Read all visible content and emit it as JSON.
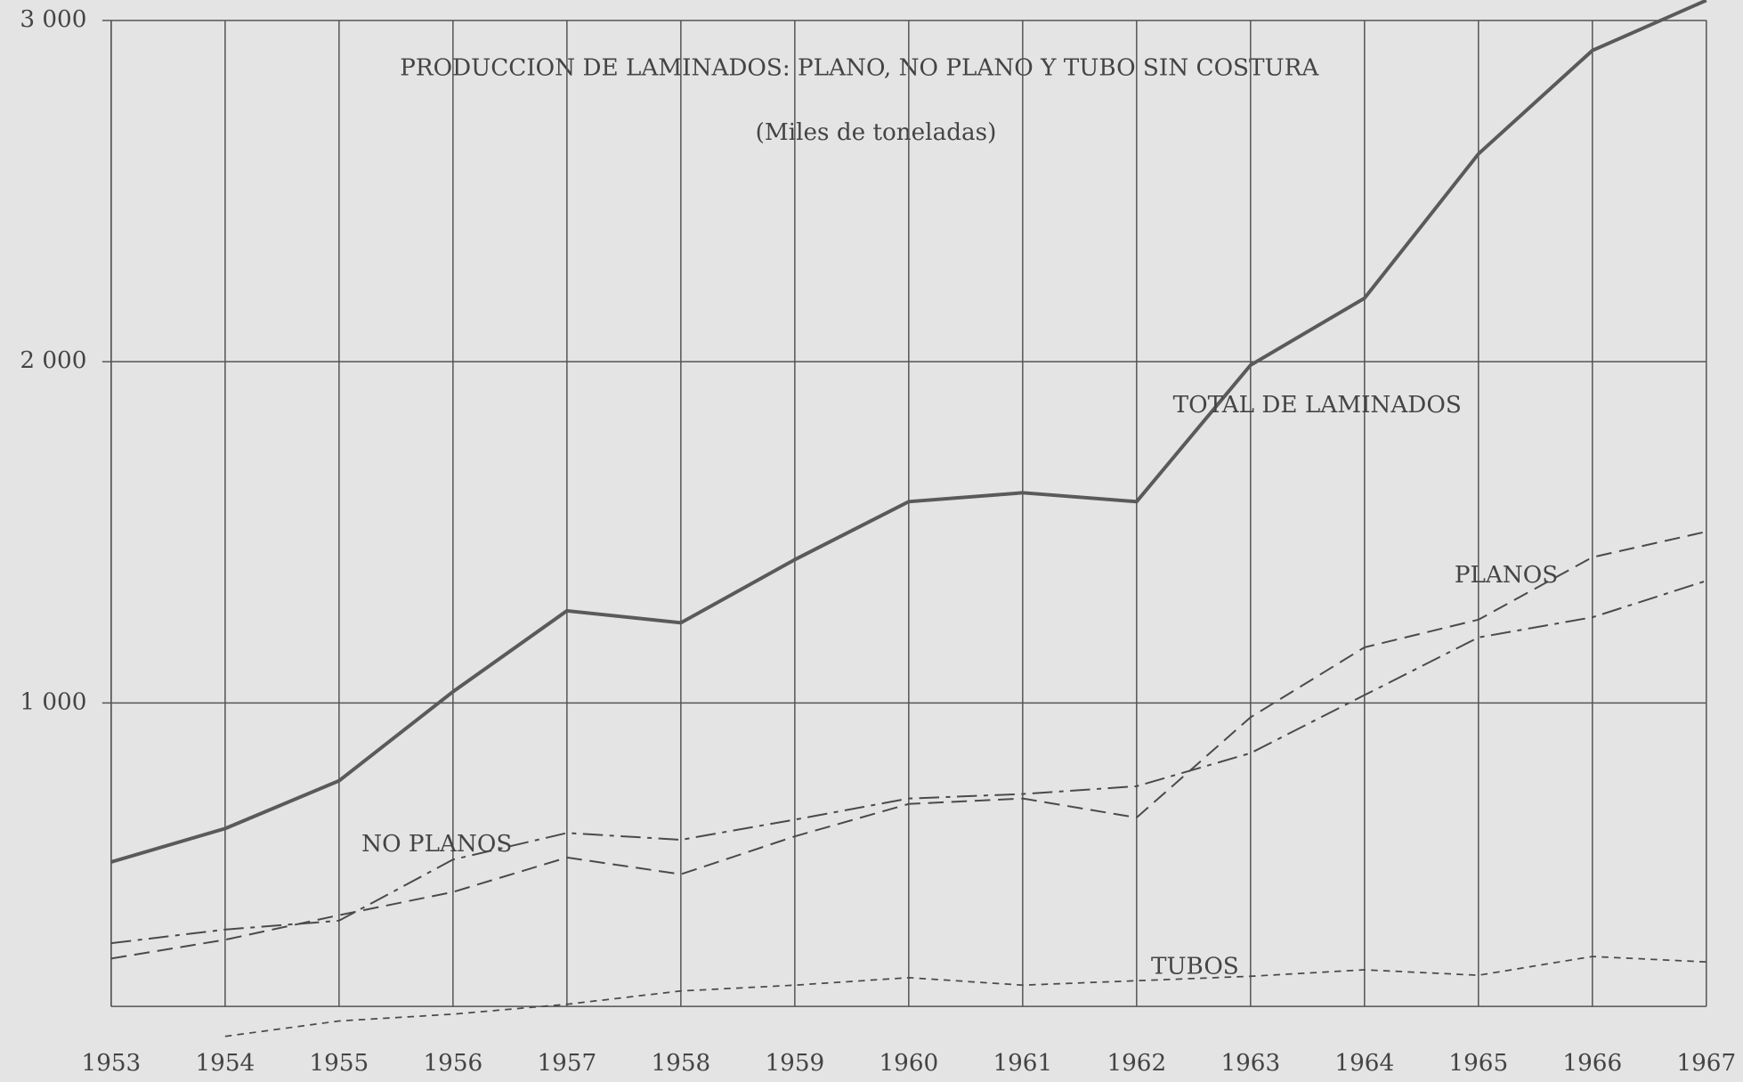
{
  "chart_data": {
    "type": "line",
    "title": "PRODUCCION DE LAMINADOS: PLANO, NO PLANO Y TUBO SIN COSTURA",
    "subtitle": "(Miles de toneladas)",
    "x": [
      1953,
      1954,
      1955,
      1956,
      1957,
      1958,
      1959,
      1960,
      1961,
      1962,
      1963,
      1964,
      1965,
      1966,
      1967
    ],
    "xlim": [
      1953,
      1967
    ],
    "xticks": [
      1953,
      1954,
      1955,
      1956,
      1957,
      1958,
      1959,
      1960,
      1961,
      1962,
      1963,
      1964,
      1965,
      1966,
      1967
    ],
    "ylim": [
      0,
      3060
    ],
    "yticks": [
      {
        "value": 1000,
        "label": "1 000"
      },
      {
        "value": 2000,
        "label": "2 000"
      },
      {
        "value": 3000,
        "label": "3 000"
      }
    ],
    "grid": true,
    "series": [
      {
        "name": "TOTAL DE LAMINADOS",
        "color": "#5a5a5a",
        "values": [
          534,
          632,
          772,
          1033,
          1270,
          1235,
          1420,
          1590,
          1616,
          1590,
          1990,
          2186,
          2609,
          2912,
          3059
        ]
      },
      {
        "name": "PLANOS",
        "color": "#4a4a4a",
        "values": [
          251,
          306,
          378,
          446,
          547,
          498,
          609,
          704,
          720,
          664,
          958,
          1163,
          1244,
          1427,
          1502
        ]
      },
      {
        "name": "NO PLANOS",
        "color": "#4a4a4a",
        "values": [
          296,
          336,
          362,
          541,
          619,
          599,
          658,
          720,
          733,
          756,
          853,
          1023,
          1192,
          1251,
          1358
        ]
      },
      {
        "name": "TUBOS",
        "color": "#4a4a4a",
        "values": [
          null,
          23,
          68,
          88,
          117,
          156,
          173,
          195,
          173,
          186,
          199,
          218,
          202,
          257,
          241
        ]
      }
    ]
  }
}
